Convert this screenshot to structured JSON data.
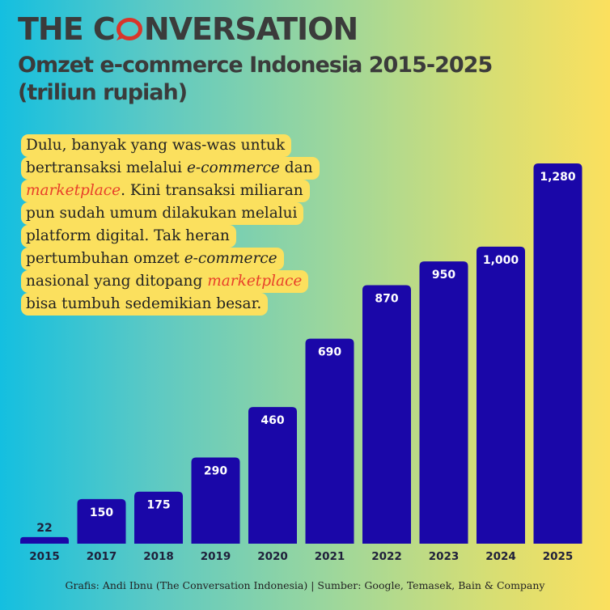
{
  "brand": {
    "before": "THE C",
    "after": "NVERSATION"
  },
  "title_line1": "Omzet e-commerce Indonesia 2015-2025",
  "title_line2": "(triliun rupiah)",
  "callout": {
    "l1": "Dulu, banyak yang was-was untuk",
    "l2a": "bertransaksi melalui ",
    "l2b": "e-commerce",
    "l2c": " dan",
    "l3a": "marketplace",
    "l3b": ". Kini transaksi miliaran",
    "l4": "pun sudah umum dilakukan melalui",
    "l5": "platform digital. Tak heran",
    "l6a": "pertumbuhan omzet ",
    "l6b": "e-commerce",
    "l7a": "nasional yang ditopang ",
    "l7b": "marketplace",
    "l8": "bisa tumbuh sedemikian besar."
  },
  "source": "Grafis: Andi Ibnu (The Conversation Indonesia) | Sumber: Google, Temasek, Bain & Company",
  "colors": {
    "bar": "#1a07a8",
    "callout_bg": "#fbe05e",
    "accent": "#e8402a",
    "brand_o": "#d8352a"
  },
  "chart_data": {
    "type": "bar",
    "title": "Omzet e-commerce Indonesia 2015-2025",
    "subtitle": "(triliun rupiah)",
    "categories": [
      "2015",
      "2017",
      "2018",
      "2019",
      "2020",
      "2021",
      "2022",
      "2023",
      "2024",
      "2025"
    ],
    "values": [
      22,
      150,
      175,
      290,
      460,
      690,
      870,
      950,
      1000,
      1280
    ],
    "value_labels": [
      "22",
      "150",
      "175",
      "290",
      "460",
      "690",
      "870",
      "950",
      "1,000",
      "1,280"
    ],
    "ylim": [
      0,
      1280
    ],
    "grid": false,
    "legend": "none"
  }
}
